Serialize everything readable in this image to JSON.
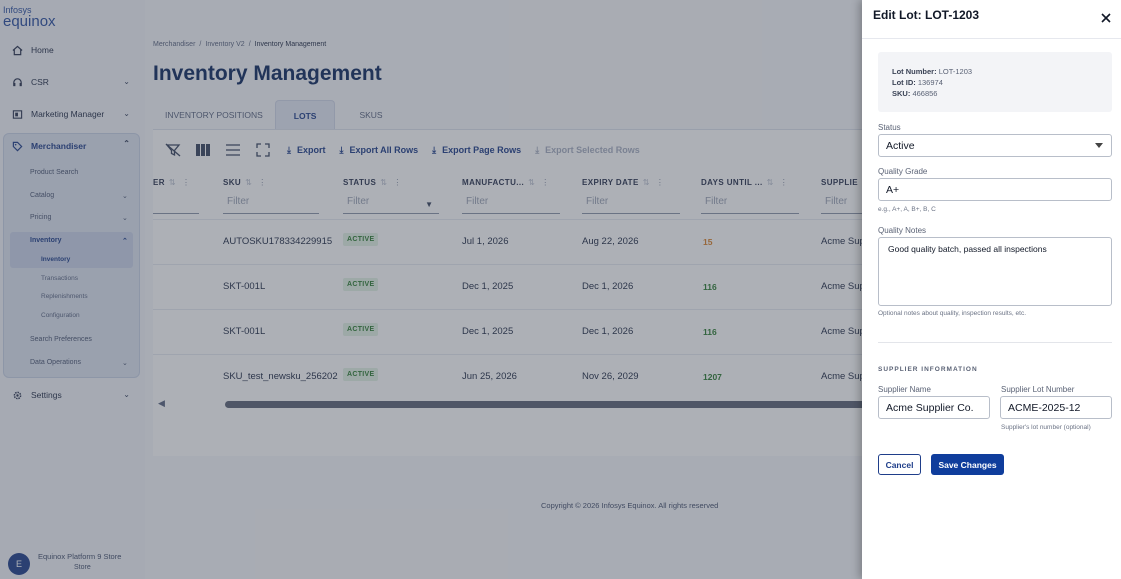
{
  "brand": {
    "line1": "Infosys",
    "line2": "equinox"
  },
  "sidebar": {
    "items": [
      {
        "label": "Home",
        "icon": "home-icon"
      },
      {
        "label": "CSR",
        "icon": "headset-icon"
      },
      {
        "label": "Marketing Manager",
        "icon": "megaphone-icon"
      },
      {
        "label": "Merchandiser",
        "icon": "tag-icon"
      },
      {
        "label": "Settings",
        "icon": "gear-icon"
      }
    ],
    "merchandiser_sub": [
      {
        "label": "Product Search"
      },
      {
        "label": "Catalog"
      },
      {
        "label": "Pricing"
      },
      {
        "label": "Inventory"
      },
      {
        "label": "Search Preferences"
      },
      {
        "label": "Data Operations"
      }
    ],
    "inventory_sub": [
      {
        "label": "Inventory"
      },
      {
        "label": "Transactions"
      },
      {
        "label": "Replenishments"
      },
      {
        "label": "Configuration"
      }
    ],
    "footer": {
      "avatar": "E",
      "name": "Equinox Platform 9 Store",
      "store": "Store"
    }
  },
  "breadcrumb": {
    "items": [
      "Merchandiser",
      "Inventory V2",
      "Inventory Management"
    ],
    "separator": "/"
  },
  "page_title": "Inventory Management",
  "tabs": [
    {
      "label": "INVENTORY POSITIONS"
    },
    {
      "label": "LOTS",
      "active": true
    },
    {
      "label": "SKUS"
    }
  ],
  "toolbar": {
    "export": "Export",
    "export_all": "Export All Rows",
    "export_page": "Export Page Rows",
    "export_selected": "Export Selected Rows"
  },
  "grid": {
    "columns": [
      "ER",
      "SKU",
      "STATUS",
      "MANUFACTU...",
      "EXPIRY DATE",
      "DAYS UNTIL ...",
      "SUPPLIE"
    ],
    "filter_placeholder": "Filter",
    "rows": [
      {
        "sku": "AUTOSKU178334229915",
        "status": "ACTIVE",
        "manufactured": "Jul 1, 2026",
        "expiry": "Aug 22, 2026",
        "days": "15",
        "days_color": "#d9822b",
        "supplier": "Acme Sup"
      },
      {
        "sku": "SKT-001L",
        "status": "ACTIVE",
        "manufactured": "Dec 1, 2025",
        "expiry": "Dec 1, 2026",
        "days": "116",
        "days_color": "#2e7d32",
        "supplier": "Acme Sup"
      },
      {
        "sku": "SKT-001L",
        "status": "ACTIVE",
        "manufactured": "Dec 1, 2025",
        "expiry": "Dec 1, 2026",
        "days": "116",
        "days_color": "#2e7d32",
        "supplier": "Acme Sup"
      },
      {
        "sku": "SKU_test_newsku_256202",
        "status": "ACTIVE",
        "manufactured": "Jun 25, 2026",
        "expiry": "Nov 26, 2029",
        "days": "1207",
        "days_color": "#2e7d32",
        "supplier": "Acme Sup"
      }
    ]
  },
  "copyright": "Copyright © 2026 Infosys Equinox. All rights reserved",
  "drawer": {
    "title": "Edit Lot: LOT-1203",
    "info": {
      "lot_number_label": "Lot Number:",
      "lot_number": "LOT-1203",
      "lot_id_label": "Lot ID:",
      "lot_id": "136974",
      "sku_label": "SKU:",
      "sku": "466856"
    },
    "status": {
      "label": "Status",
      "value": "Active"
    },
    "quality_grade": {
      "label": "Quality Grade",
      "value": "A+",
      "helper": "e.g., A+, A, B+, B, C"
    },
    "quality_notes": {
      "label": "Quality Notes",
      "value": "Good quality batch, passed all inspections",
      "helper": "Optional notes about quality, inspection results, etc."
    },
    "supplier_section": "SUPPLIER INFORMATION",
    "supplier_name": {
      "label": "Supplier Name",
      "value": "Acme Supplier Co."
    },
    "supplier_lot": {
      "label": "Supplier Lot Number",
      "value": "ACME-2025-12",
      "helper": "Supplier's lot number (optional)"
    },
    "cancel": "Cancel",
    "save": "Save Changes"
  },
  "colors": {
    "primary": "#0f3d9c",
    "title": "#0e2a5f",
    "active_badge": "#2e7d32",
    "warning_days": "#d9822b"
  }
}
